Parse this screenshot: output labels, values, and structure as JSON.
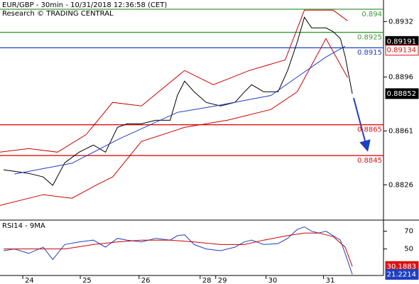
{
  "chart_data": [
    {
      "type": "line",
      "title": "EUR/GBP - 30min - 10/31/2018 12:36:58 (CET)",
      "subtitle": "Research © TRADING CENTRAL",
      "xlim": [
        0,
        160
      ],
      "ylim": [
        0.8804,
        0.8946
      ],
      "yticks": [
        0.8826,
        0.8861,
        0.8896,
        0.8932
      ],
      "series": [
        {
          "color": "#000000",
          "x": [
            1.5,
            6,
            12,
            18,
            22,
            27,
            33,
            39,
            44,
            49,
            53,
            59,
            65,
            71,
            74,
            77,
            81,
            86,
            92,
            98,
            102,
            105,
            110,
            116,
            120,
            124,
            127,
            130,
            133,
            136,
            139,
            142,
            144,
            147
          ],
          "values": [
            0.88357,
            0.88348,
            0.88334,
            0.88311,
            0.88256,
            0.88403,
            0.88472,
            0.88518,
            0.88472,
            0.88633,
            0.88656,
            0.88656,
            0.88679,
            0.88679,
            0.88841,
            0.88933,
            0.88864,
            0.88795,
            0.88772,
            0.88795,
            0.88864,
            0.8891,
            0.88864,
            0.88864,
            0.89002,
            0.89186,
            0.89348,
            0.89279,
            0.89279,
            0.89279,
            0.89255,
            0.89209,
            0.89094,
            0.88852
          ]
        },
        {
          "color": "#cc0000",
          "x": [
            0,
            12,
            24,
            36,
            47,
            59,
            77,
            89,
            104,
            119,
            127,
            139,
            145
          ],
          "values": [
            0.88472,
            0.88495,
            0.88472,
            0.88587,
            0.88795,
            0.88772,
            0.89002,
            0.8891,
            0.89002,
            0.89071,
            0.89394,
            0.89394,
            0.89325
          ]
        },
        {
          "color": "#cc0000",
          "x": [
            0,
            18,
            30,
            41,
            47,
            59,
            77,
            95,
            113,
            124,
            136,
            145
          ],
          "values": [
            0.88126,
            0.88196,
            0.88173,
            0.88265,
            0.88311,
            0.88541,
            0.88633,
            0.8868,
            0.88749,
            0.88864,
            0.89209,
            0.88956
          ]
        },
        {
          "color": "#1f3fbf",
          "x": [
            6,
            30,
            50,
            74,
            89,
            113,
            124,
            136,
            144
          ],
          "values": [
            0.8833,
            0.884,
            0.8856,
            0.8873,
            0.8877,
            0.8884,
            0.8896,
            0.8909,
            0.8916
          ]
        }
      ],
      "levels": [
        {
          "value": 0.894,
          "color": "#3c9a3c"
        },
        {
          "value": 0.8925,
          "color": "#3c9a3c"
        },
        {
          "value": 0.8915,
          "color": "#1f3fbf"
        },
        {
          "value": 0.8865,
          "color": "#dd1111"
        },
        {
          "value": 0.8845,
          "color": "#dd1111"
        }
      ],
      "price_tags": [
        {
          "value": 0.89191,
          "color": "#000000"
        },
        {
          "value": 0.89134,
          "color": "#dd1111"
        },
        {
          "value": 0.88852,
          "color": "#000000"
        }
      ]
    },
    {
      "type": "line",
      "title": "RSI14 - 9MA",
      "xlim": [
        0,
        160
      ],
      "xticks": [
        {
          "value": 9.5,
          "label": "24"
        },
        {
          "value": 33.5,
          "label": "25"
        },
        {
          "value": 58,
          "label": "26"
        },
        {
          "value": 83.5,
          "label": "28"
        },
        {
          "value": 90,
          "label": "29"
        },
        {
          "value": 111,
          "label": "30"
        },
        {
          "value": 135,
          "label": "31"
        }
      ],
      "ylim": [
        20,
        81
      ],
      "yticks": [
        70,
        50
      ],
      "series": [
        {
          "color": "#1f3fbf",
          "x": [
            1.5,
            6,
            12,
            18,
            22,
            27,
            33,
            39,
            44,
            49,
            53,
            59,
            65,
            71,
            74,
            77,
            81,
            86,
            92,
            98,
            102,
            105,
            110,
            116,
            120,
            124,
            127,
            130,
            133,
            136,
            139,
            142,
            144,
            147
          ],
          "values": [
            48,
            50,
            45,
            52,
            38,
            55,
            58,
            60,
            52,
            62,
            60,
            58,
            62,
            60,
            65,
            66,
            55,
            50,
            48,
            52,
            58,
            60,
            55,
            56,
            62,
            72,
            75,
            70,
            68,
            70,
            65,
            60,
            45,
            21.2214
          ]
        },
        {
          "color": "#cc0000",
          "x": [
            1.5,
            12,
            27,
            39,
            49,
            59,
            71,
            81,
            92,
            102,
            110,
            120,
            127,
            133,
            139,
            144,
            147
          ],
          "values": [
            50,
            50,
            50,
            55,
            58,
            60,
            60,
            58,
            55,
            55,
            60,
            65,
            68,
            68,
            64,
            52,
            30.1883
          ]
        }
      ],
      "price_tags": [
        {
          "value": 30.1883,
          "color": "#dd1111"
        },
        {
          "value": 21.2214,
          "color": "#1f3fbf"
        }
      ]
    }
  ]
}
